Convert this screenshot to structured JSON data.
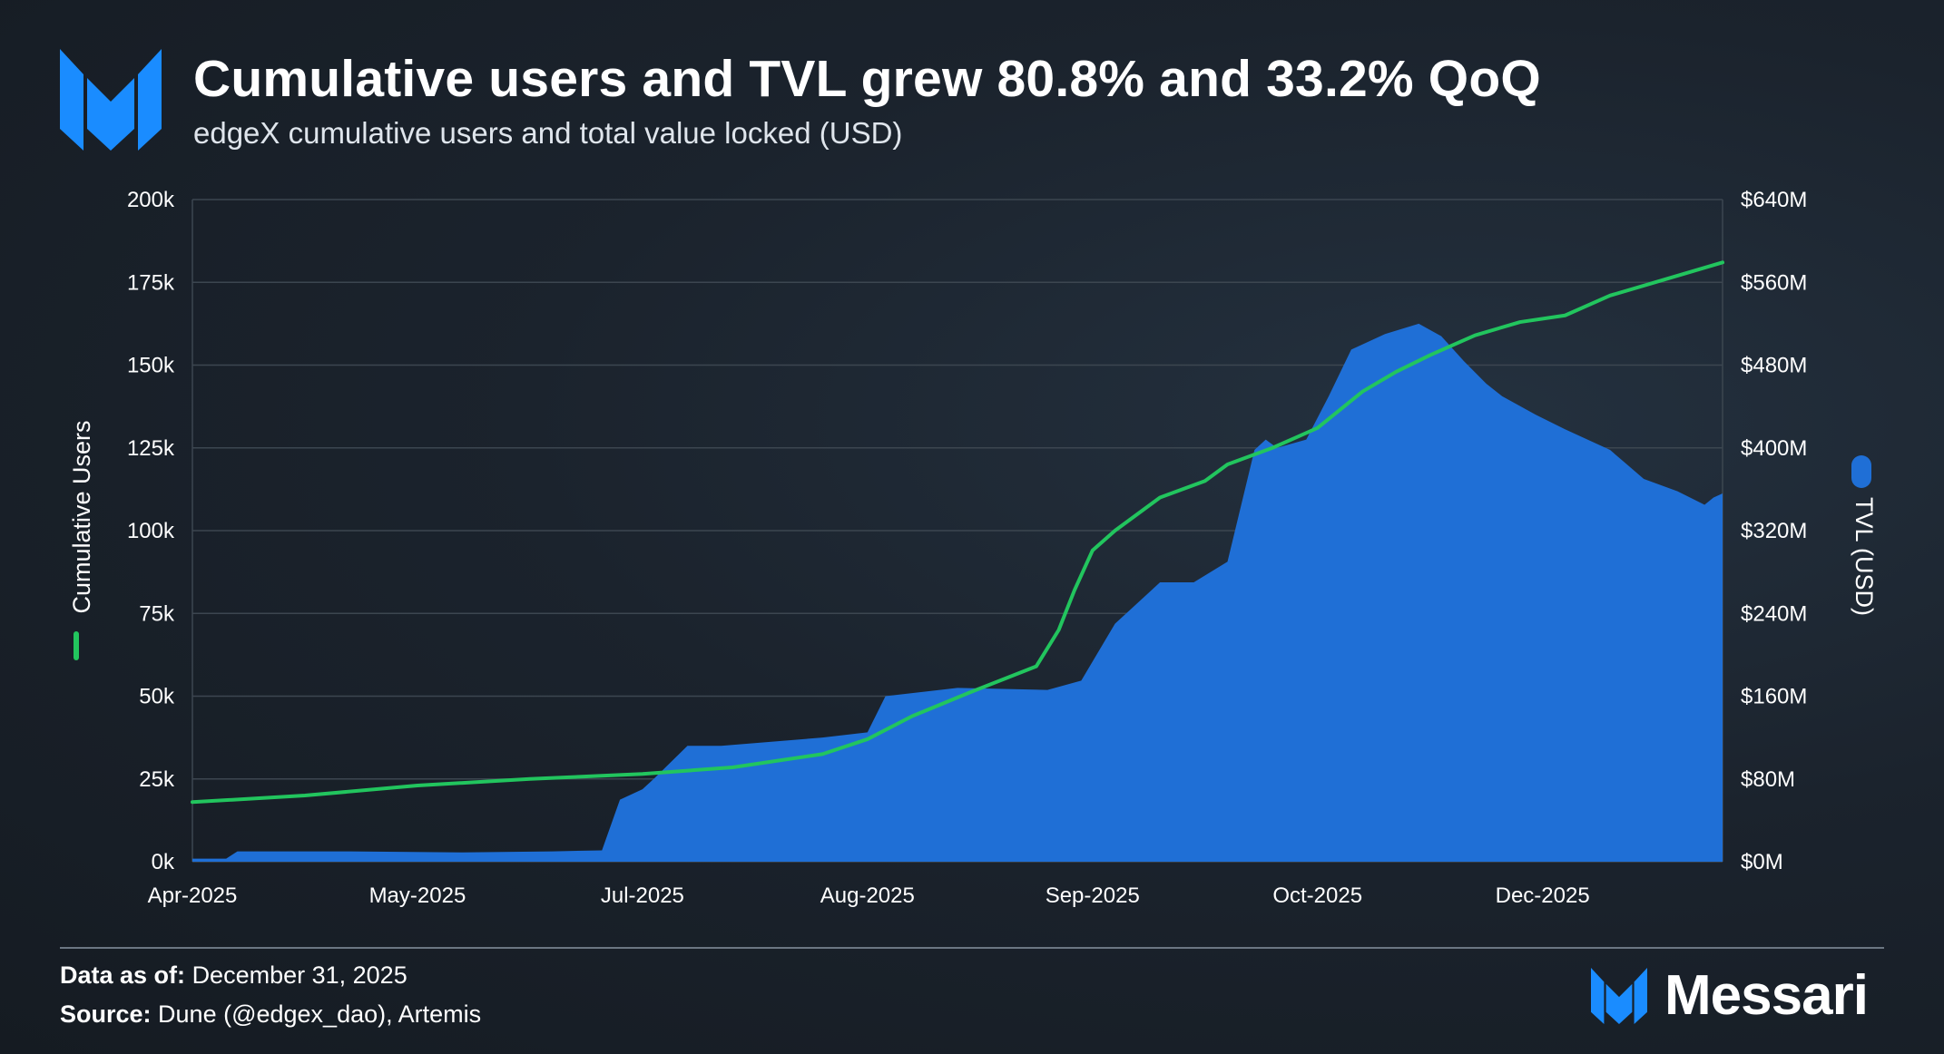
{
  "header": {
    "title": "Cumulative users and TVL grew 80.8% and 33.2% QoQ",
    "subtitle": "edgeX cumulative users and total value locked (USD)"
  },
  "footer": {
    "data_as_of_label": "Data as of:",
    "data_as_of_value": "December 31, 2025",
    "source_label": "Source:",
    "source_value": "Dune (@edgex_dao), Artemis",
    "brand": "Messari"
  },
  "colors": {
    "users_line": "#22c55e",
    "tvl_area": "#1f6fd6",
    "grid": "#3c4650",
    "text": "#ffffff"
  },
  "chart_data": {
    "type": "line+area",
    "title": "Cumulative users and TVL grew 80.8% and 33.2% QoQ",
    "x_ticks": [
      "Apr-2025",
      "May-2025",
      "Jul-2025",
      "Aug-2025",
      "Sep-2025",
      "Oct-2025",
      "Dec-2025"
    ],
    "x_tick_positions": [
      0,
      1,
      2,
      3,
      4,
      5,
      6
    ],
    "x_range": [
      0,
      6.8
    ],
    "y_left": {
      "label": "Cumulative Users",
      "range": [
        0,
        200000
      ],
      "tick_labels": [
        "0k",
        "25k",
        "50k",
        "75k",
        "100k",
        "125k",
        "150k",
        "175k",
        "200k"
      ]
    },
    "y_right": {
      "label": "TVL (USD)",
      "range": [
        0,
        640
      ],
      "unit": "M USD",
      "tick_labels": [
        "$0M",
        "$80M",
        "$160M",
        "$240M",
        "$320M",
        "$400M",
        "$480M",
        "$560M",
        "$640M"
      ]
    },
    "legend_position": "side-axes",
    "series": [
      {
        "name": "Cumulative Users",
        "type": "line",
        "axis": "left",
        "x": [
          0,
          0.5,
          1,
          1.5,
          2,
          2.4,
          2.8,
          3.0,
          3.2,
          3.45,
          3.6,
          3.75,
          3.85,
          3.92,
          4.0,
          4.1,
          4.3,
          4.5,
          4.6,
          4.8,
          4.9,
          5.0,
          5.2,
          5.35,
          5.5,
          5.7,
          5.9,
          6.1,
          6.3,
          6.6,
          6.8
        ],
        "values": [
          18000,
          20000,
          23000,
          25000,
          26500,
          28500,
          32500,
          37000,
          44000,
          51000,
          55000,
          59000,
          70000,
          82000,
          94000,
          100000,
          110000,
          115000,
          120000,
          125000,
          128000,
          131000,
          142000,
          148000,
          153000,
          159000,
          163000,
          165000,
          171000,
          177000,
          181000
        ]
      },
      {
        "name": "TVL (USD)",
        "type": "area",
        "axis": "right",
        "x": [
          0,
          0.15,
          0.2,
          0.7,
          1.2,
          1.6,
          1.82,
          1.9,
          2.0,
          2.05,
          2.2,
          2.35,
          2.8,
          3.0,
          3.08,
          3.4,
          3.8,
          3.95,
          4.1,
          4.3,
          4.45,
          4.6,
          4.72,
          4.77,
          4.82,
          4.95,
          5.05,
          5.15,
          5.3,
          5.45,
          5.55,
          5.65,
          5.75,
          5.82,
          5.97,
          6.1,
          6.3,
          6.45,
          6.6,
          6.72,
          6.76,
          6.8
        ],
        "values": [
          3,
          3,
          10,
          10,
          9,
          10,
          11,
          60,
          70,
          80,
          112,
          112,
          120,
          125,
          160,
          168,
          166,
          175,
          230,
          270,
          270,
          290,
          398,
          408,
          400,
          408,
          450,
          495,
          510,
          520,
          508,
          484,
          462,
          450,
          432,
          418,
          398,
          370,
          358,
          345,
          352,
          356
        ]
      }
    ]
  }
}
